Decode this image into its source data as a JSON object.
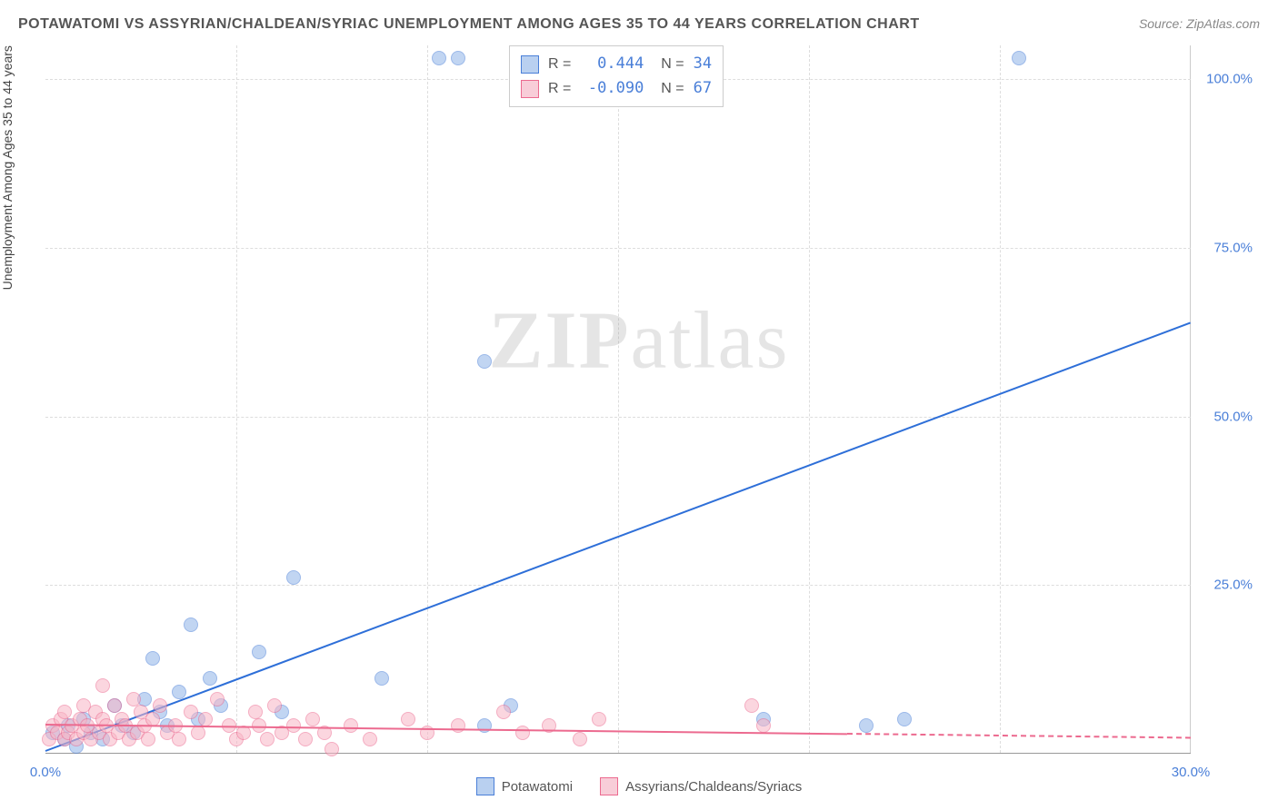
{
  "title": "POTAWATOMI VS ASSYRIAN/CHALDEAN/SYRIAC UNEMPLOYMENT AMONG AGES 35 TO 44 YEARS CORRELATION CHART",
  "source": "Source: ZipAtlas.com",
  "y_axis_label": "Unemployment Among Ages 35 to 44 years",
  "watermark_a": "ZIP",
  "watermark_b": "atlas",
  "chart": {
    "type": "scatter",
    "xlim": [
      0,
      30
    ],
    "ylim": [
      0,
      105
    ],
    "x_ticks": [
      0.0,
      30.0
    ],
    "x_tick_labels": [
      "0.0%",
      "30.0%"
    ],
    "y_ticks": [
      25.0,
      50.0,
      75.0,
      100.0
    ],
    "y_tick_labels": [
      "25.0%",
      "50.0%",
      "75.0%",
      "100.0%"
    ],
    "grid_v": [
      5,
      10,
      15,
      20,
      25
    ],
    "grid_h": [
      25,
      50,
      75,
      100
    ],
    "background_color": "#ffffff",
    "grid_color": "#dddddd"
  },
  "series": [
    {
      "name": "Potawatomi",
      "color": "#8fb3e8",
      "border_color": "#4a7fd8",
      "css": "blue",
      "r_label": "R =",
      "r_value": "0.444",
      "n_label": "N =",
      "n_value": "34",
      "trend": {
        "x1": 0,
        "y1": 0.5,
        "x2": 30,
        "y2": 64,
        "solid_until_x": 30
      },
      "points": [
        [
          0.2,
          3
        ],
        [
          0.5,
          2
        ],
        [
          0.6,
          4
        ],
        [
          0.8,
          1
        ],
        [
          1.0,
          5
        ],
        [
          1.2,
          3
        ],
        [
          1.5,
          2
        ],
        [
          1.8,
          7
        ],
        [
          2.0,
          4
        ],
        [
          2.3,
          3
        ],
        [
          2.6,
          8
        ],
        [
          2.8,
          14
        ],
        [
          3.0,
          6
        ],
        [
          3.2,
          4
        ],
        [
          3.5,
          9
        ],
        [
          3.8,
          19
        ],
        [
          4.0,
          5
        ],
        [
          4.3,
          11
        ],
        [
          4.6,
          7
        ],
        [
          5.6,
          15
        ],
        [
          6.2,
          6
        ],
        [
          6.5,
          26
        ],
        [
          8.8,
          11
        ],
        [
          10.3,
          103
        ],
        [
          10.8,
          103
        ],
        [
          11.5,
          58
        ],
        [
          11.5,
          4
        ],
        [
          12.2,
          7
        ],
        [
          18.8,
          5
        ],
        [
          21.5,
          4
        ],
        [
          22.5,
          5
        ],
        [
          25.5,
          103
        ]
      ]
    },
    {
      "name": "Assyrians/Chaldeans/Syriacs",
      "color": "#f8b6c6",
      "border_color": "#ec6a8f",
      "css": "pink",
      "r_label": "R =",
      "r_value": "-0.090",
      "n_label": "N =",
      "n_value": "67",
      "trend": {
        "x1": 0,
        "y1": 4.5,
        "x2": 30,
        "y2": 2.5,
        "solid_until_x": 21
      },
      "points": [
        [
          0.1,
          2
        ],
        [
          0.2,
          4
        ],
        [
          0.3,
          3
        ],
        [
          0.4,
          5
        ],
        [
          0.5,
          2
        ],
        [
          0.5,
          6
        ],
        [
          0.6,
          3
        ],
        [
          0.7,
          4
        ],
        [
          0.8,
          2
        ],
        [
          0.9,
          5
        ],
        [
          1.0,
          3
        ],
        [
          1.0,
          7
        ],
        [
          1.1,
          4
        ],
        [
          1.2,
          2
        ],
        [
          1.3,
          6
        ],
        [
          1.4,
          3
        ],
        [
          1.5,
          5
        ],
        [
          1.5,
          10
        ],
        [
          1.6,
          4
        ],
        [
          1.7,
          2
        ],
        [
          1.8,
          7
        ],
        [
          1.9,
          3
        ],
        [
          2.0,
          5
        ],
        [
          2.1,
          4
        ],
        [
          2.2,
          2
        ],
        [
          2.3,
          8
        ],
        [
          2.4,
          3
        ],
        [
          2.5,
          6
        ],
        [
          2.6,
          4
        ],
        [
          2.7,
          2
        ],
        [
          2.8,
          5
        ],
        [
          3.0,
          7
        ],
        [
          3.2,
          3
        ],
        [
          3.4,
          4
        ],
        [
          3.5,
          2
        ],
        [
          3.8,
          6
        ],
        [
          4.0,
          3
        ],
        [
          4.2,
          5
        ],
        [
          4.5,
          8
        ],
        [
          4.8,
          4
        ],
        [
          5.0,
          2
        ],
        [
          5.2,
          3
        ],
        [
          5.5,
          6
        ],
        [
          5.6,
          4
        ],
        [
          5.8,
          2
        ],
        [
          6.0,
          7
        ],
        [
          6.2,
          3
        ],
        [
          6.5,
          4
        ],
        [
          6.8,
          2
        ],
        [
          7.0,
          5
        ],
        [
          7.3,
          3
        ],
        [
          7.5,
          0.5
        ],
        [
          8.0,
          4
        ],
        [
          8.5,
          2
        ],
        [
          9.5,
          5
        ],
        [
          10.0,
          3
        ],
        [
          10.8,
          4
        ],
        [
          12.0,
          6
        ],
        [
          12.5,
          3
        ],
        [
          13.2,
          4
        ],
        [
          14.0,
          2
        ],
        [
          14.5,
          5
        ],
        [
          18.5,
          7
        ],
        [
          18.8,
          4
        ]
      ]
    }
  ],
  "bottom_legend": [
    {
      "swatch": "blue",
      "label": "Potawatomi"
    },
    {
      "swatch": "pink",
      "label": "Assyrians/Chaldeans/Syriacs"
    }
  ]
}
